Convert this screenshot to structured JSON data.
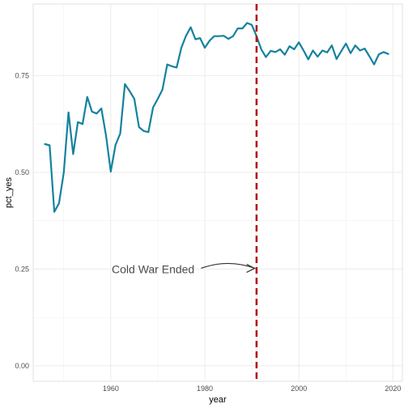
{
  "chart_data": {
    "type": "line",
    "xlabel": "year",
    "ylabel": "pct_yes",
    "xlim": [
      1943.5,
      2022
    ],
    "ylim": [
      -0.04,
      0.935
    ],
    "x_ticks": [
      1960,
      1980,
      2000,
      2020
    ],
    "x_tick_labels": [
      "1960",
      "1980",
      "2000",
      "2020"
    ],
    "y_ticks": [
      0.0,
      0.25,
      0.5,
      0.75
    ],
    "y_tick_labels": [
      "0.00",
      "0.25",
      "0.50",
      "0.75"
    ],
    "grid": true,
    "series": [
      {
        "color": "#14829e",
        "x": [
          1946,
          1947,
          1948,
          1949,
          1950,
          1951,
          1952,
          1953,
          1954,
          1955,
          1956,
          1957,
          1958,
          1959,
          1960,
          1961,
          1962,
          1963,
          1964,
          1965,
          1966,
          1967,
          1968,
          1969,
          1970,
          1971,
          1972,
          1973,
          1974,
          1975,
          1976,
          1977,
          1978,
          1979,
          1980,
          1981,
          1982,
          1983,
          1984,
          1985,
          1986,
          1987,
          1988,
          1989,
          1990,
          1991,
          1992,
          1993,
          1994,
          1995,
          1996,
          1997,
          1998,
          1999,
          2000,
          2001,
          2002,
          2003,
          2004,
          2005,
          2006,
          2007,
          2008,
          2009,
          2010,
          2011,
          2012,
          2013,
          2014,
          2015,
          2016,
          2017,
          2018,
          2019
        ],
        "y": [
          0.573,
          0.57,
          0.398,
          0.42,
          0.5,
          0.655,
          0.547,
          0.63,
          0.625,
          0.695,
          0.657,
          0.652,
          0.665,
          0.595,
          0.502,
          0.571,
          0.6,
          0.728,
          0.71,
          0.69,
          0.617,
          0.607,
          0.604,
          0.668,
          0.69,
          0.714,
          0.779,
          0.774,
          0.771,
          0.822,
          0.853,
          0.875,
          0.844,
          0.847,
          0.822,
          0.84,
          0.852,
          0.852,
          0.853,
          0.845,
          0.852,
          0.872,
          0.872,
          0.886,
          0.881,
          0.852,
          0.818,
          0.798,
          0.814,
          0.811,
          0.818,
          0.804,
          0.826,
          0.818,
          0.836,
          0.815,
          0.792,
          0.815,
          0.799,
          0.815,
          0.81,
          0.828,
          0.793,
          0.813,
          0.833,
          0.808,
          0.828,
          0.815,
          0.82,
          0.8,
          0.779,
          0.805,
          0.811,
          0.806
        ]
      }
    ],
    "annotations": [
      {
        "text": "Cold War Ended",
        "x": 1969,
        "y": 0.25
      },
      {
        "type": "vline",
        "x": 1991,
        "color": "#b20000",
        "style": "dashed"
      }
    ]
  }
}
